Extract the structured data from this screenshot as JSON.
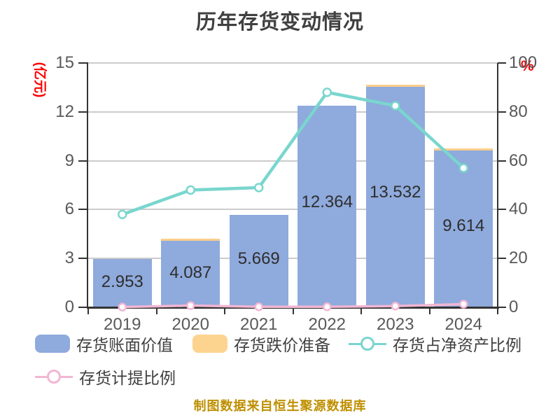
{
  "title": "历年存货变动情况",
  "source_note": "制图数据来自恒生聚源数据库",
  "legend": {
    "items": [
      {
        "label": "存货账面价值",
        "swatch": "bar",
        "color": "#8faadc"
      },
      {
        "label": "存货跌价准备",
        "swatch": "bar",
        "color": "#fcd38f"
      },
      {
        "label": "存货占净资产比例",
        "swatch": "line",
        "color": "#79d6ce"
      },
      {
        "label": "存货计提比例",
        "swatch": "line",
        "color": "#f2b6d3"
      }
    ]
  },
  "chart_data": {
    "type": "bar",
    "combo": "bar+line, dual axis",
    "categories": [
      "2019",
      "2020",
      "2021",
      "2022",
      "2023",
      "2024"
    ],
    "series": [
      {
        "name": "存货账面价值",
        "kind": "bar",
        "axis": "left",
        "color": "#8faadc",
        "values": [
          2.953,
          4.087,
          5.669,
          12.364,
          13.532,
          9.614
        ],
        "labels": [
          "2.953",
          "4.087",
          "5.669",
          "12.364",
          "13.532",
          "9.614"
        ]
      },
      {
        "name": "存货跌价准备",
        "kind": "bar-cap",
        "axis": "left",
        "color": "#fbce8c",
        "values": [
          0,
          0.12,
          0,
          0,
          0.12,
          0.14
        ]
      },
      {
        "name": "存货占净资产比例",
        "kind": "line",
        "axis": "right",
        "color": "#79d6ce",
        "values": [
          38,
          48,
          49,
          88,
          82.5,
          57
        ]
      },
      {
        "name": "存货计提比例",
        "kind": "line",
        "axis": "right",
        "color": "#f2b6d3",
        "values": [
          0.1,
          0.7,
          0.2,
          0.2,
          0.5,
          1.3
        ]
      }
    ],
    "left_axis": {
      "label": "(亿元)",
      "min": 0,
      "max": 15,
      "ticks": [
        0,
        3,
        6,
        9,
        12,
        15
      ]
    },
    "right_axis": {
      "label": "%",
      "min": 0,
      "max": 100,
      "ticks": [
        0,
        20,
        40,
        60,
        80,
        100
      ]
    },
    "grid": true,
    "legend_position": "bottom-left"
  },
  "colors": {
    "background": "#ffffff",
    "title": "#404040",
    "tick_label": "#595959",
    "bar_label": "#2e2e2e",
    "axis_line": "#333333",
    "gridline": "#cccccc",
    "unit_label": "#ff0000",
    "source_note": "#bf8f00"
  }
}
